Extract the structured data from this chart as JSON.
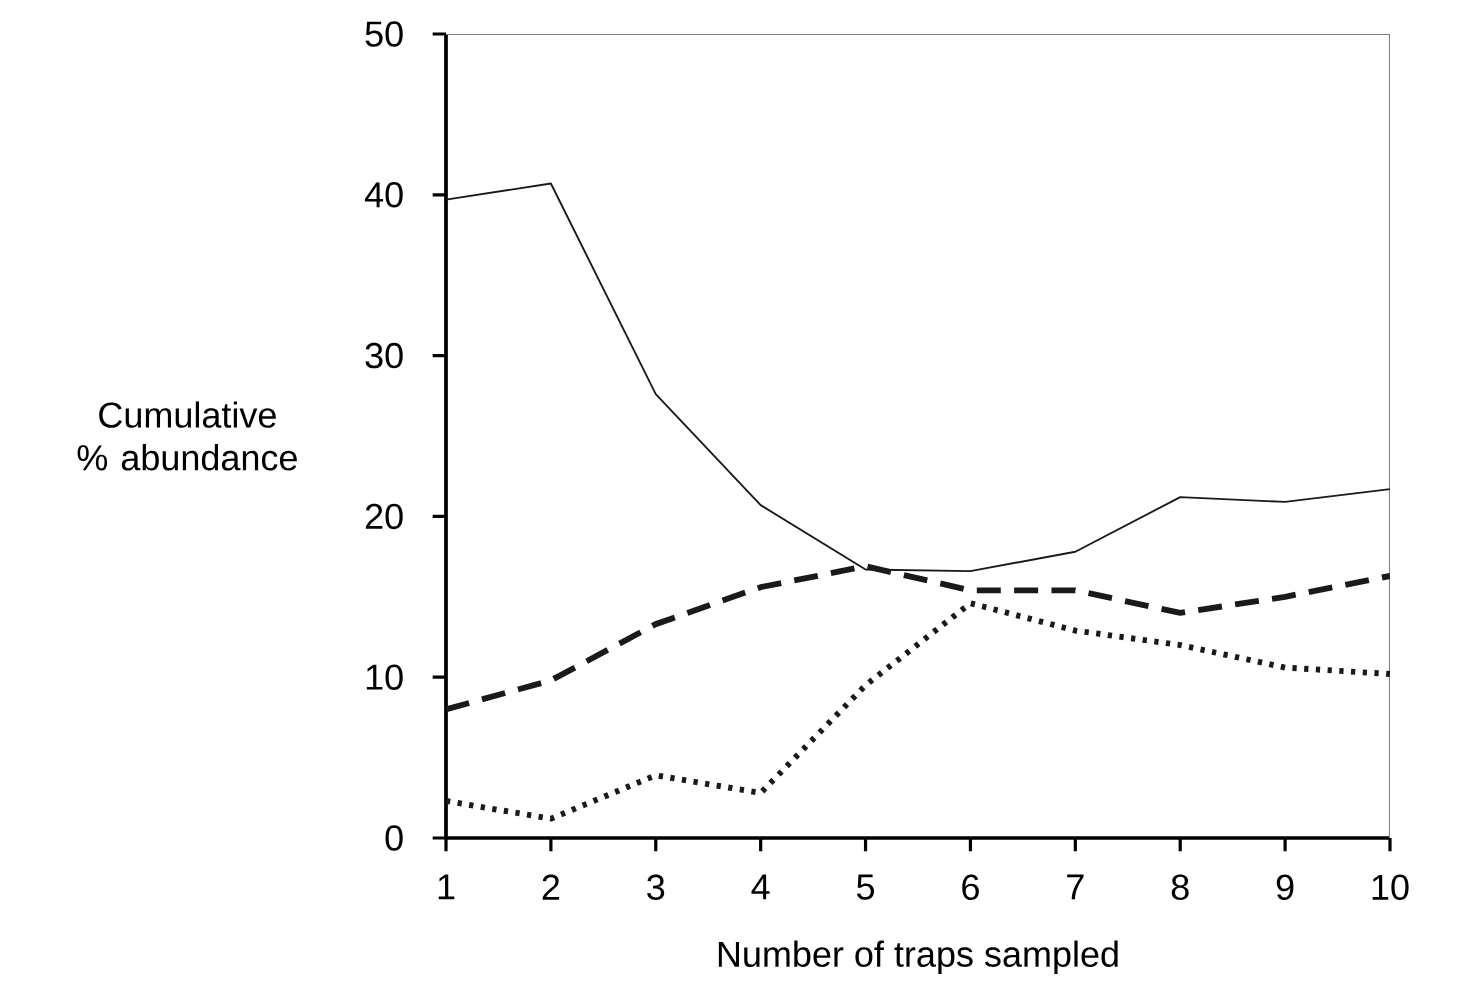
{
  "chart_data": {
    "type": "line",
    "xlabel": "Number of traps sampled",
    "ylabel": "Cumulative % abundance",
    "x": [
      1,
      2,
      3,
      4,
      5,
      6,
      7,
      8,
      9,
      10
    ],
    "series": [
      {
        "color": "#1a1a1a",
        "line_style": "solid",
        "values": [
          39.7,
          40.7,
          27.6,
          20.7,
          16.7,
          16.6,
          17.8,
          21.2,
          20.9,
          21.7
        ]
      },
      {
        "color": "#1a1a1a",
        "line_style": "dashed",
        "values": [
          8.0,
          9.8,
          13.3,
          15.6,
          16.9,
          15.4,
          15.4,
          14.0,
          15.0,
          16.3
        ]
      },
      {
        "color": "#1a1a1a",
        "line_style": "dotted",
        "values": [
          2.3,
          1.2,
          3.9,
          2.8,
          9.5,
          14.6,
          12.9,
          12.0,
          10.6,
          10.2
        ]
      }
    ],
    "xlim": [
      1,
      10
    ],
    "xticks": [
      1,
      2,
      3,
      4,
      5,
      6,
      7,
      8,
      9,
      10
    ],
    "ylim": [
      0,
      50
    ],
    "yticks": [
      0,
      10,
      20,
      30,
      40,
      50
    ],
    "grid": false,
    "marker": "none"
  }
}
